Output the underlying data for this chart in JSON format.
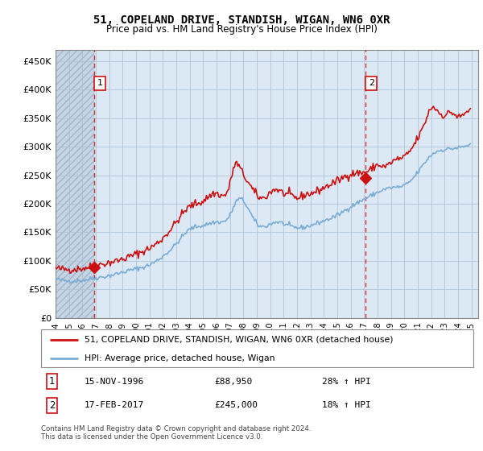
{
  "title": "51, COPELAND DRIVE, STANDISH, WIGAN, WN6 0XR",
  "subtitle": "Price paid vs. HM Land Registry's House Price Index (HPI)",
  "ylabel_ticks": [
    "£0",
    "£50K",
    "£100K",
    "£150K",
    "£200K",
    "£250K",
    "£300K",
    "£350K",
    "£400K",
    "£450K"
  ],
  "ytick_values": [
    0,
    50000,
    100000,
    150000,
    200000,
    250000,
    300000,
    350000,
    400000,
    450000
  ],
  "ylim": [
    0,
    470000
  ],
  "xlim_start": 1994.0,
  "xlim_end": 2025.5,
  "chart_bg_color": "#dce9f5",
  "hatch_bg_color": "#c8d8e8",
  "grid_color": "#b0c4d8",
  "hpi_color": "#7aadd4",
  "price_color": "#cc1111",
  "sale1_x": 1996.88,
  "sale1_y": 88950,
  "sale1_label": "1",
  "sale1_date": "15-NOV-1996",
  "sale1_price": "£88,950",
  "sale1_hpi": "28% ↑ HPI",
  "sale2_x": 2017.12,
  "sale2_y": 245000,
  "sale2_label": "2",
  "sale2_date": "17-FEB-2017",
  "sale2_price": "£245,000",
  "sale2_hpi": "18% ↑ HPI",
  "legend_line1": "51, COPELAND DRIVE, STANDISH, WIGAN, WN6 0XR (detached house)",
  "legend_line2": "HPI: Average price, detached house, Wigan",
  "footer1": "Contains HM Land Registry data © Crown copyright and database right 2024.",
  "footer2": "This data is licensed under the Open Government Licence v3.0.",
  "xtick_years": [
    1994,
    1995,
    1996,
    1997,
    1998,
    1999,
    2000,
    2001,
    2002,
    2003,
    2004,
    2005,
    2006,
    2007,
    2008,
    2009,
    2010,
    2011,
    2012,
    2013,
    2014,
    2015,
    2016,
    2017,
    2018,
    2019,
    2020,
    2021,
    2022,
    2023,
    2024,
    2025
  ]
}
